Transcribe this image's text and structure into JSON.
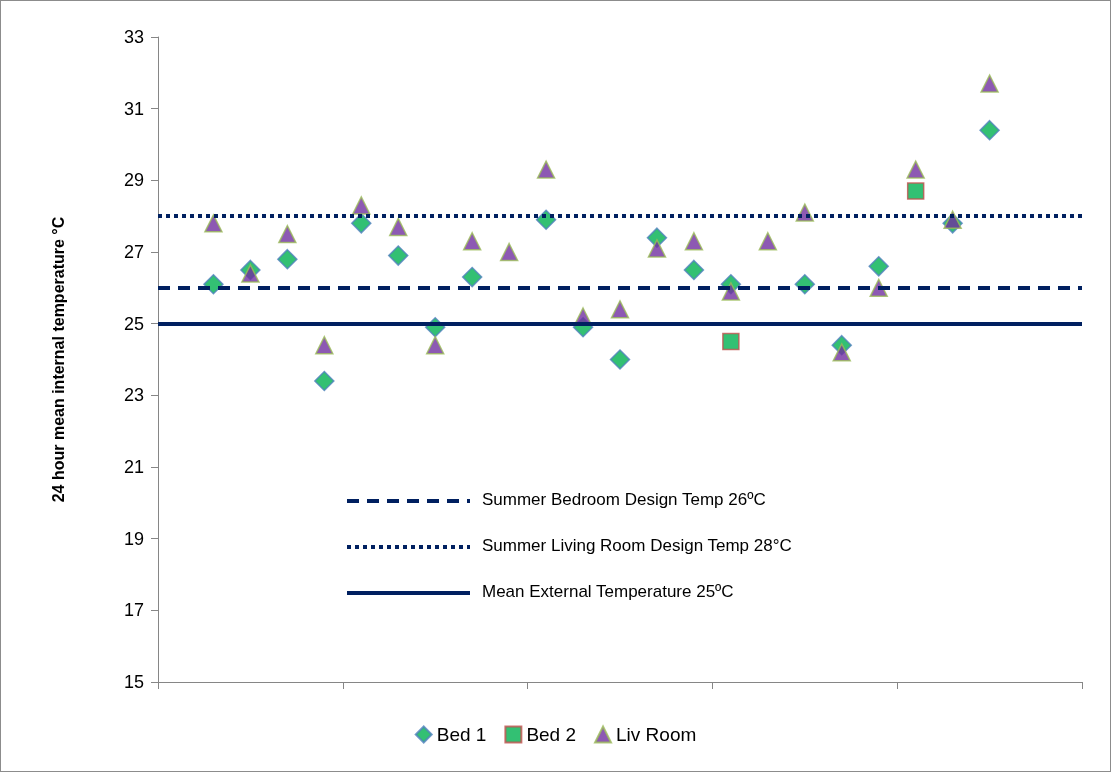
{
  "chart_data": {
    "type": "scatter",
    "ylabel": "24 hour mean internal temperature °C",
    "categories": [
      null,
      null,
      null,
      null,
      null,
      null,
      null,
      null,
      null,
      null,
      null,
      null,
      null,
      null,
      null,
      null,
      null,
      null,
      null,
      null,
      null,
      null,
      null,
      null,
      null
    ],
    "series": [
      {
        "name": "Bed 1",
        "color": "#00b050",
        "marker": "diamond",
        "values": [
          null,
          26.1,
          26.5,
          26.8,
          23.4,
          27.8,
          26.9,
          24.9,
          26.3,
          null,
          27.9,
          24.9,
          24.0,
          27.4,
          26.5,
          26.1,
          null,
          26.1,
          24.4,
          26.6,
          null,
          27.8,
          30.4,
          null,
          null
        ]
      },
      {
        "name": "Bed 2",
        "color": "#00b050",
        "marker": "square",
        "values": [
          null,
          null,
          null,
          null,
          null,
          null,
          null,
          null,
          null,
          null,
          null,
          null,
          null,
          null,
          null,
          24.5,
          null,
          null,
          null,
          null,
          28.7,
          null,
          null,
          null,
          null
        ]
      },
      {
        "name": "Liv Room",
        "color": "#7030a0",
        "marker": "triangle",
        "values": [
          null,
          27.8,
          26.4,
          27.5,
          24.4,
          28.3,
          27.7,
          24.4,
          27.3,
          27.0,
          29.3,
          25.2,
          25.4,
          27.1,
          27.3,
          25.9,
          27.3,
          28.1,
          24.2,
          26.0,
          29.3,
          27.9,
          31.7,
          null,
          null
        ]
      }
    ],
    "ylim": [
      15,
      33
    ],
    "yticks": [
      15,
      17,
      19,
      21,
      23,
      25,
      27,
      29,
      31,
      33
    ],
    "ref_lines": [
      {
        "axis": "y",
        "value": 26,
        "label": "Summer Bedroom Design Temp 26ºC",
        "color": "#002060",
        "line_style": "dashed"
      },
      {
        "axis": "y",
        "value": 28,
        "label": "Summer Living Room Design Temp 28°C",
        "color": "#002060",
        "line_style": "dotted"
      },
      {
        "axis": "y",
        "value": 25,
        "label": "Mean External Temperature 25ºC",
        "color": "#002060",
        "line_style": "solid"
      }
    ],
    "legend": "bottom",
    "grid": false,
    "tick_labels": "y"
  }
}
